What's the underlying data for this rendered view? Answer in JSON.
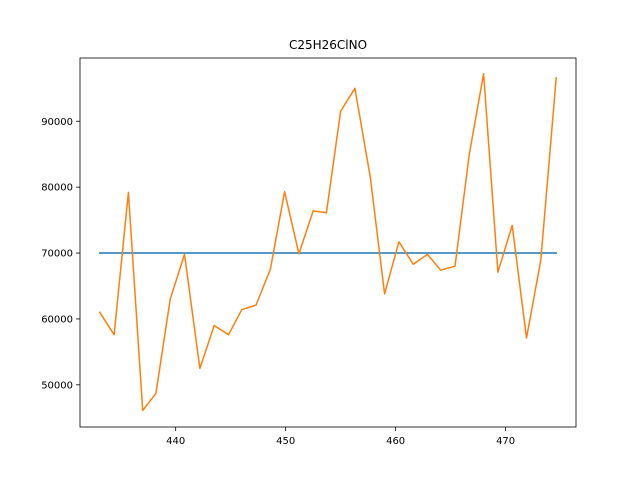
{
  "chart_data": {
    "type": "line",
    "title": "C25H26ClNO",
    "xlabel": "",
    "ylabel": "",
    "xlim": [
      431.3,
      476.4
    ],
    "ylim": [
      43600,
      99600
    ],
    "grid": false,
    "xticks": [
      440,
      450,
      460,
      470
    ],
    "yticks": [
      50000,
      60000,
      70000,
      80000,
      90000
    ],
    "series": [
      {
        "color": "#1f77b4",
        "x": [
          433.1,
          474.6
        ],
        "y": [
          70000,
          70000
        ]
      },
      {
        "color": "#ff7f0e",
        "x": [
          433.1,
          434.4,
          435.7,
          437.0,
          438.2,
          439.5,
          440.8,
          442.2,
          443.5,
          444.8,
          446.0,
          447.3,
          448.6,
          449.9,
          451.2,
          452.5,
          453.7,
          455.0,
          456.3,
          457.7,
          459.0,
          460.3,
          461.6,
          462.9,
          464.1,
          465.4,
          466.7,
          468.0,
          469.3,
          470.6,
          471.9,
          473.2,
          474.6
        ],
        "y": [
          61000,
          57600,
          79200,
          46100,
          48700,
          63000,
          69800,
          52500,
          59000,
          57600,
          61400,
          62100,
          67500,
          79300,
          69900,
          76400,
          76100,
          91500,
          95000,
          81500,
          63800,
          71700,
          68300,
          69800,
          67400,
          68000,
          85000,
          97200,
          67100,
          74200,
          57100,
          68900,
          96600
        ]
      }
    ]
  }
}
